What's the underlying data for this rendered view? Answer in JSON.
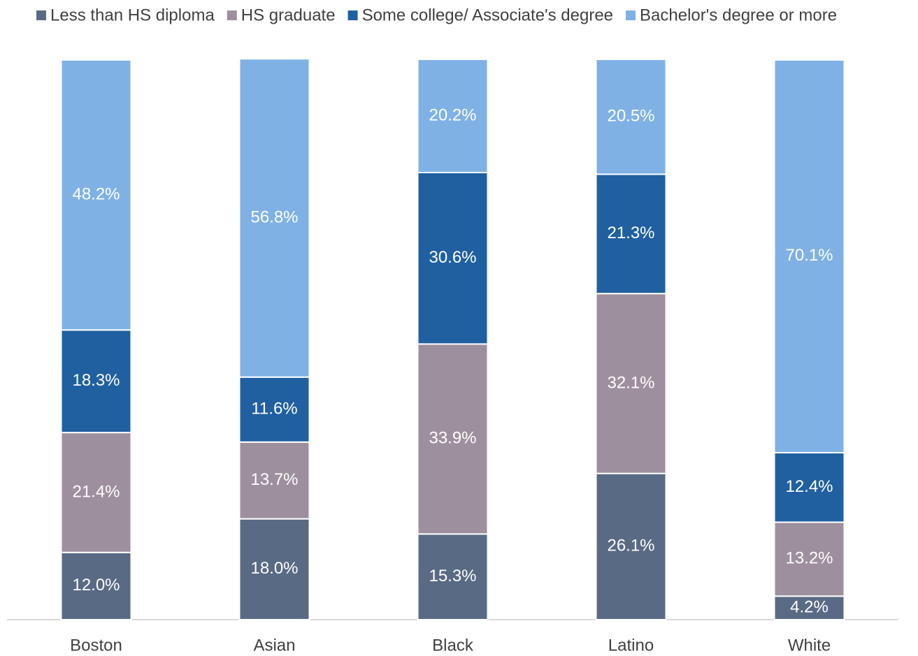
{
  "chart_data": {
    "type": "stacked_bar",
    "categories": [
      "Boston",
      "Asian",
      "Black",
      "Latino",
      "White"
    ],
    "series": [
      {
        "name": "Less than HS diploma",
        "color": "#596a84",
        "values": [
          12.0,
          18.0,
          15.3,
          26.1,
          4.2
        ],
        "value_labels": [
          "12.0%",
          "18.0%",
          "15.3%",
          "26.1%",
          "4.2%"
        ]
      },
      {
        "name": "HS graduate",
        "color": "#9e8f9e",
        "values": [
          21.4,
          13.7,
          33.9,
          32.1,
          13.2
        ],
        "value_labels": [
          "21.4%",
          "13.7%",
          "33.9%",
          "32.1%",
          "13.2%"
        ]
      },
      {
        "name": "Some college/ Associate's degree",
        "color": "#2060a0",
        "values": [
          18.3,
          11.6,
          30.6,
          21.3,
          12.4
        ],
        "value_labels": [
          "18.3%",
          "11.6%",
          "30.6%",
          "21.3%",
          "12.4%"
        ]
      },
      {
        "name": "Bachelor's degree or more",
        "color": "#7fb1e5",
        "values": [
          48.2,
          56.8,
          20.2,
          20.5,
          70.1
        ],
        "value_labels": [
          "48.2%",
          "56.8%",
          "20.2%",
          "20.5%",
          "70.1%"
        ]
      }
    ],
    "ylim": [
      0,
      100
    ],
    "legend": "top"
  }
}
